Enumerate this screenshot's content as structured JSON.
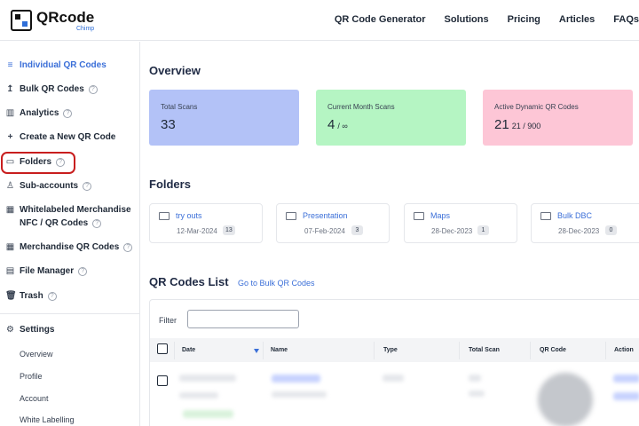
{
  "header": {
    "logo_name": "QRcode",
    "logo_sub": "Chimp",
    "nav": [
      "QR Code Generator",
      "Solutions",
      "Pricing",
      "Articles",
      "FAQs"
    ]
  },
  "sidebar": {
    "items": [
      {
        "label": "Individual QR Codes",
        "icon": "layers-icon",
        "active": true
      },
      {
        "label": "Bulk QR Codes",
        "icon": "upload-icon",
        "help": true
      },
      {
        "label": "Analytics",
        "icon": "bar-chart-icon",
        "help": true
      },
      {
        "label": "Create a New QR Code",
        "icon": "plus-icon"
      },
      {
        "label": "Folders",
        "icon": "folder-icon",
        "help": true
      },
      {
        "label": "Sub-accounts",
        "icon": "user-icon",
        "help": true
      },
      {
        "label": "Whitelabeled Merchandise",
        "label2": "NFC / QR Codes",
        "icon": "grid-icon",
        "help": true
      },
      {
        "label": "Merchandise QR Codes",
        "icon": "grid-icon",
        "help": true
      },
      {
        "label": "File Manager",
        "icon": "file-icon",
        "help": true
      },
      {
        "label": "Trash",
        "icon": "trash-icon",
        "help": true
      }
    ],
    "settings": {
      "label": "Settings",
      "icon": "gear-icon",
      "links": [
        "Overview",
        "Profile",
        "Account",
        "White Labelling"
      ]
    }
  },
  "overview": {
    "title": "Overview",
    "cards": [
      {
        "label": "Total Scans",
        "value": "33",
        "sub": "",
        "color": "#b3c2f7"
      },
      {
        "label": "Current Month Scans",
        "value": "4",
        "sub": "/ ∞",
        "color": "#b5f5c3"
      },
      {
        "label": "Active Dynamic QR Codes",
        "value": "21",
        "sub": "21  / 900",
        "color": "#fdc6d6"
      }
    ]
  },
  "folders": {
    "title": "Folders",
    "items": [
      {
        "name": "try outs",
        "date": "12-Mar-2024",
        "count": "13"
      },
      {
        "name": "Presentation",
        "date": "07-Feb-2024",
        "count": "3"
      },
      {
        "name": "Maps",
        "date": "28-Dec-2023",
        "count": "1"
      },
      {
        "name": "Bulk DBC",
        "date": "28-Dec-2023",
        "count": "0"
      }
    ]
  },
  "qr_list": {
    "title": "QR Codes List",
    "bulk_link": "Go to Bulk QR Codes",
    "filter_label": "Filter",
    "filter_value": "",
    "columns": [
      "Date",
      "Name",
      "Type",
      "Total Scan",
      "QR Code",
      "Action"
    ]
  },
  "colors": {
    "accent": "#3b6fd8",
    "highlight": "#c81e1e"
  }
}
